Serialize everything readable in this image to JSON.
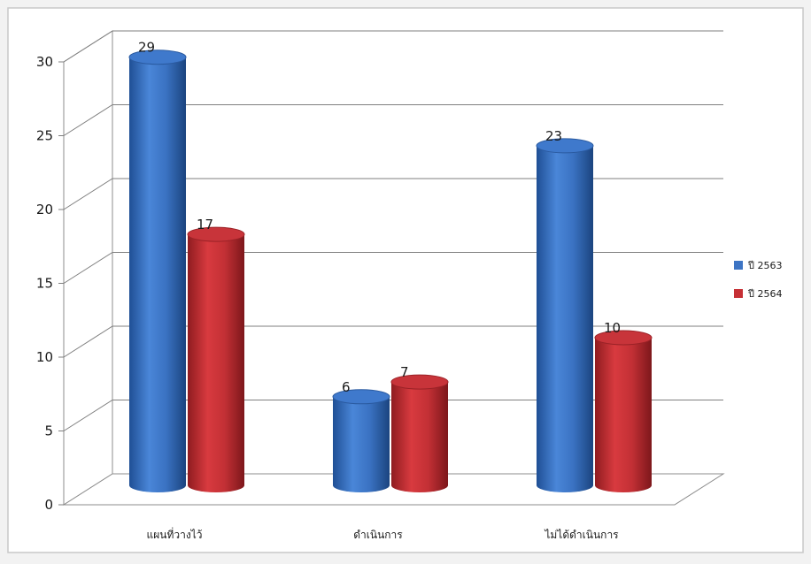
{
  "chart_data": {
    "type": "bar",
    "categories": [
      "แผนที่วางไว้",
      "ดำเนินการ",
      "ไม่ได้ดำเนินการ"
    ],
    "series": [
      {
        "name": "ปี 2563",
        "values": [
          29,
          6,
          23
        ],
        "color": "#3d74c4"
      },
      {
        "name": "ปี 2564",
        "values": [
          17,
          7,
          10
        ],
        "color": "#c63035"
      }
    ],
    "ylim": [
      0,
      30
    ],
    "yticks": [
      0,
      5,
      10,
      15,
      20,
      25,
      30
    ],
    "grid": true,
    "legend": "right",
    "style": "3d-cylinder"
  }
}
